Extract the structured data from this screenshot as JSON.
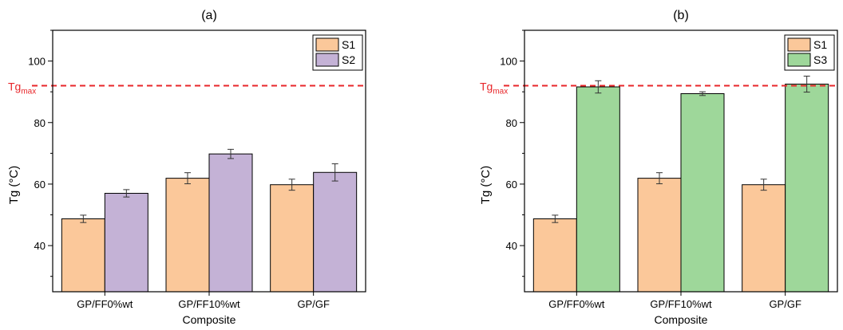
{
  "chart_data": [
    {
      "type": "bar",
      "title": "(a)",
      "xlabel": "Composite",
      "ylabel": "Tg (°C)",
      "categories": [
        "GP/FF0%wt",
        "GP/FF10%wt",
        "GP/GF"
      ],
      "series": [
        {
          "name": "S1",
          "values": [
            48.7,
            61.9,
            59.8
          ],
          "errors": [
            1.2,
            1.8,
            1.8
          ],
          "color": "#FBC89A"
        },
        {
          "name": "S2",
          "values": [
            57.0,
            69.8,
            63.8
          ],
          "errors": [
            1.2,
            1.5,
            2.8
          ],
          "color": "#C4B2D6"
        }
      ],
      "ylim": [
        25,
        110
      ],
      "yticks": [
        40,
        60,
        80,
        100
      ],
      "reference_line": {
        "label_main": "Tg",
        "label_sub": "max",
        "value": 92,
        "color": "#E8262A",
        "style": "dashed"
      },
      "legend_position": "top-right",
      "grid": false
    },
    {
      "type": "bar",
      "title": "(b)",
      "xlabel": "Composite",
      "ylabel": "Tg (°C)",
      "categories": [
        "GP/FF0%wt",
        "GP/FF10%wt",
        "GP/GF"
      ],
      "series": [
        {
          "name": "S1",
          "values": [
            48.7,
            61.9,
            59.8
          ],
          "errors": [
            1.2,
            1.8,
            1.8
          ],
          "color": "#FBC89A"
        },
        {
          "name": "S3",
          "values": [
            91.6,
            89.4,
            92.5
          ],
          "errors": [
            2.0,
            0.6,
            2.6
          ],
          "color": "#9ED79A"
        }
      ],
      "ylim": [
        25,
        110
      ],
      "yticks": [
        40,
        60,
        80,
        100
      ],
      "reference_line": {
        "label_main": "Tg",
        "label_sub": "max",
        "value": 92,
        "color": "#E8262A",
        "style": "dashed"
      },
      "legend_position": "top-right",
      "grid": false
    }
  ]
}
